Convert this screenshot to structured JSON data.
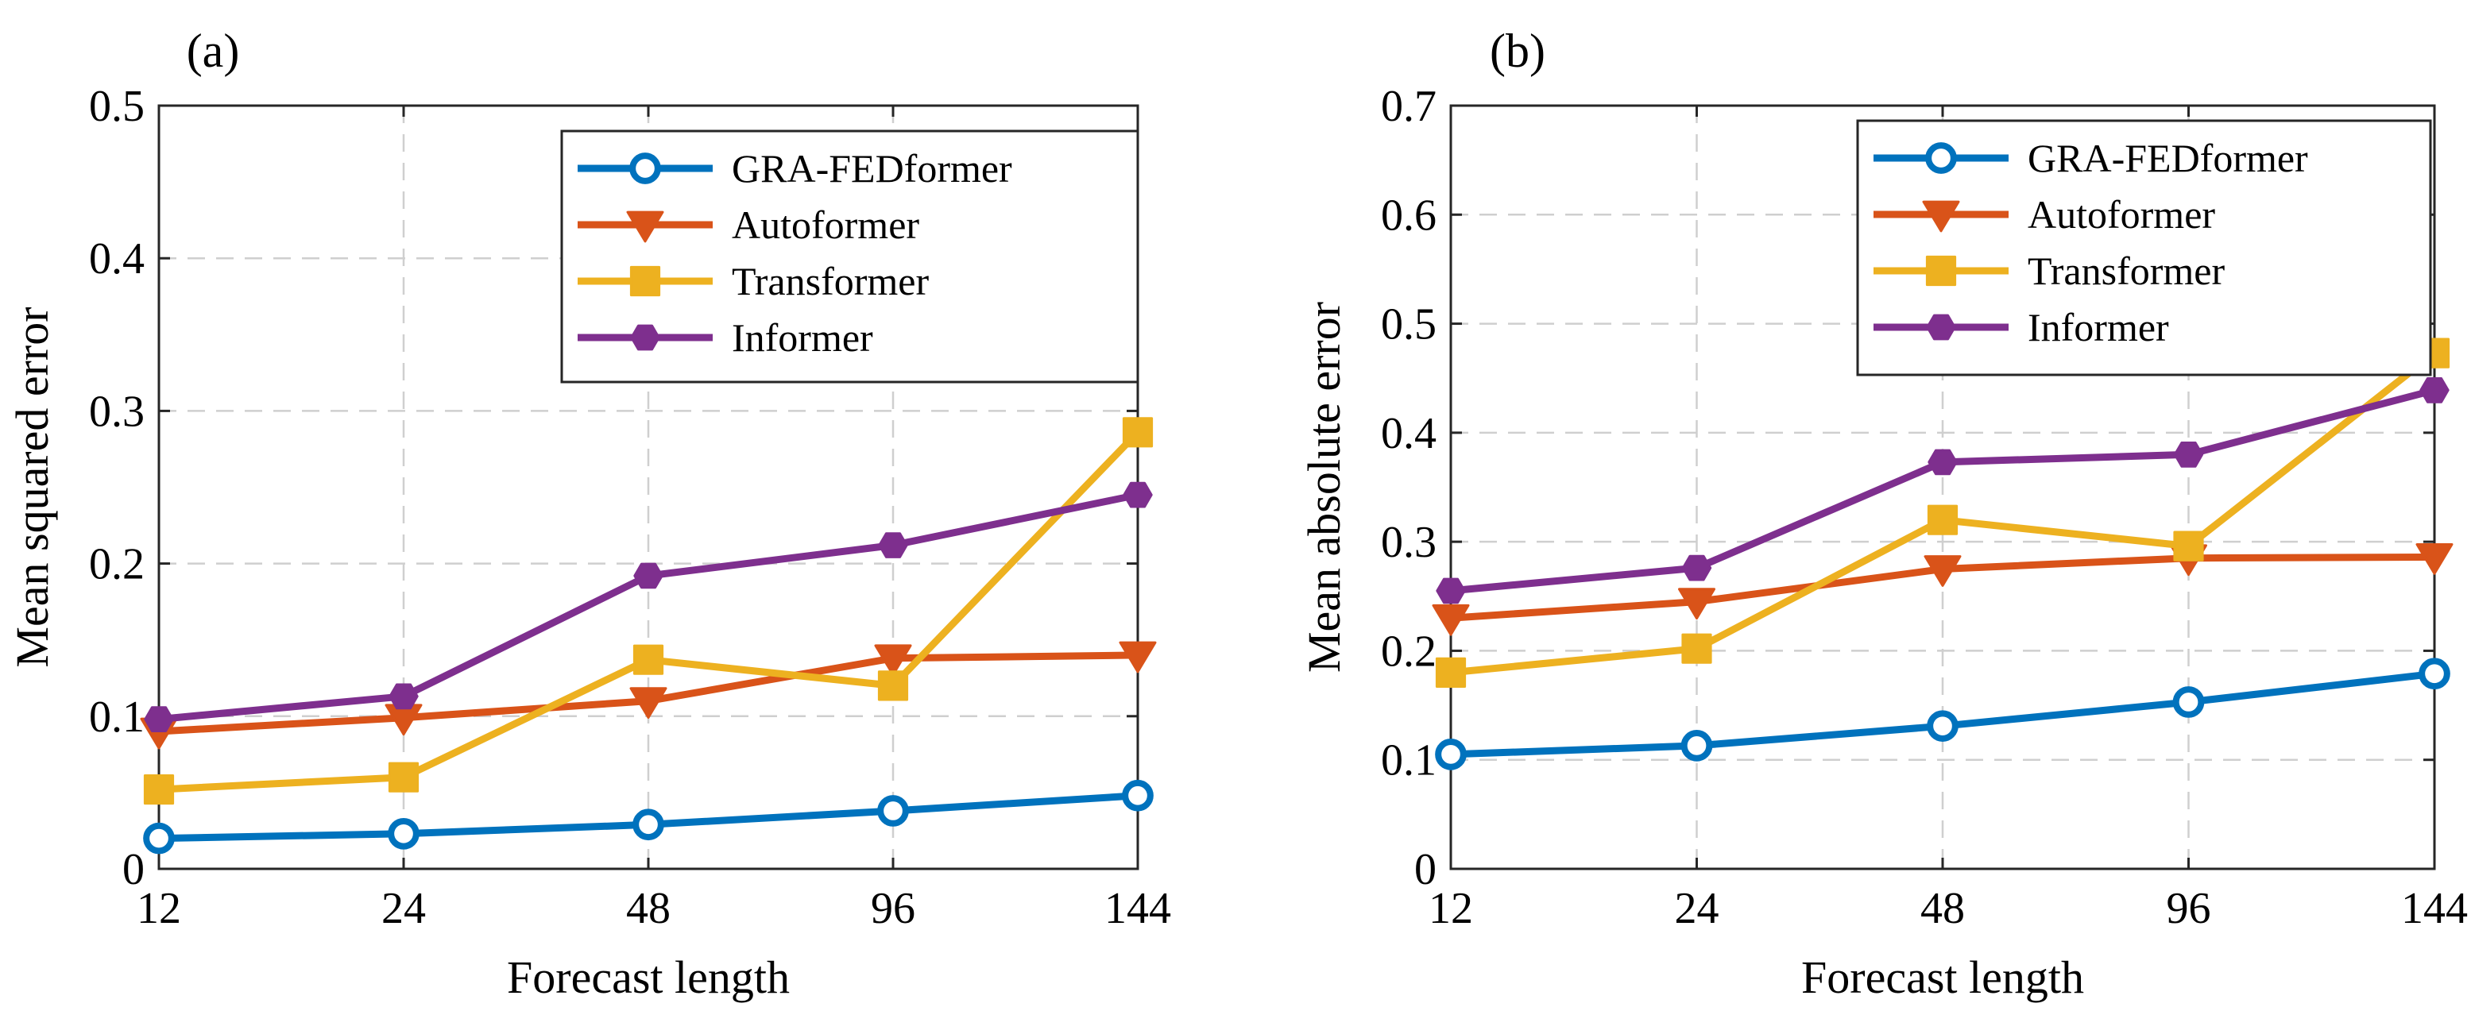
{
  "chart_data": [
    {
      "type": "line",
      "panel_label": "(a)",
      "categories": [
        "12",
        "24",
        "48",
        "96",
        "144"
      ],
      "xlabel": "Forecast length",
      "ylabel": "Mean squared error",
      "ylim": [
        0,
        0.5
      ],
      "yticks": [
        "0",
        "0.1",
        "0.2",
        "0.3",
        "0.4",
        "0.5"
      ],
      "grid": true,
      "legend_position": "top-right",
      "series": [
        {
          "name": "GRA-FEDformer",
          "color": "#0072BD",
          "marker": "circle",
          "values": [
            0.02,
            0.023,
            0.029,
            0.038,
            0.048
          ]
        },
        {
          "name": "Autoformer",
          "color": "#D95319",
          "marker": "triangle-down",
          "values": [
            0.09,
            0.099,
            0.11,
            0.138,
            0.14
          ]
        },
        {
          "name": "Transformer",
          "color": "#EDB120",
          "marker": "square",
          "values": [
            0.052,
            0.06,
            0.137,
            0.12,
            0.286
          ]
        },
        {
          "name": "Informer",
          "color": "#7E2F8E",
          "marker": "hexagon",
          "values": [
            0.098,
            0.113,
            0.192,
            0.212,
            0.245
          ]
        }
      ]
    },
    {
      "type": "line",
      "panel_label": "(b)",
      "categories": [
        "12",
        "24",
        "48",
        "96",
        "144"
      ],
      "xlabel": "Forecast length",
      "ylabel": "Mean absolute error",
      "ylim": [
        0,
        0.7
      ],
      "yticks": [
        "0",
        "0.1",
        "0.2",
        "0.3",
        "0.4",
        "0.5",
        "0.6",
        "0.7"
      ],
      "grid": true,
      "legend_position": "top-right",
      "series": [
        {
          "name": "GRA-FEDformer",
          "color": "#0072BD",
          "marker": "circle",
          "values": [
            0.105,
            0.113,
            0.131,
            0.153,
            0.179
          ]
        },
        {
          "name": "Autoformer",
          "color": "#D95319",
          "marker": "triangle-down",
          "values": [
            0.23,
            0.245,
            0.275,
            0.285,
            0.286
          ]
        },
        {
          "name": "Transformer",
          "color": "#EDB120",
          "marker": "square",
          "values": [
            0.18,
            0.202,
            0.32,
            0.296,
            0.473
          ]
        },
        {
          "name": "Informer",
          "color": "#7E2F8E",
          "marker": "hexagon",
          "values": [
            0.255,
            0.276,
            0.373,
            0.38,
            0.439
          ]
        }
      ]
    }
  ]
}
